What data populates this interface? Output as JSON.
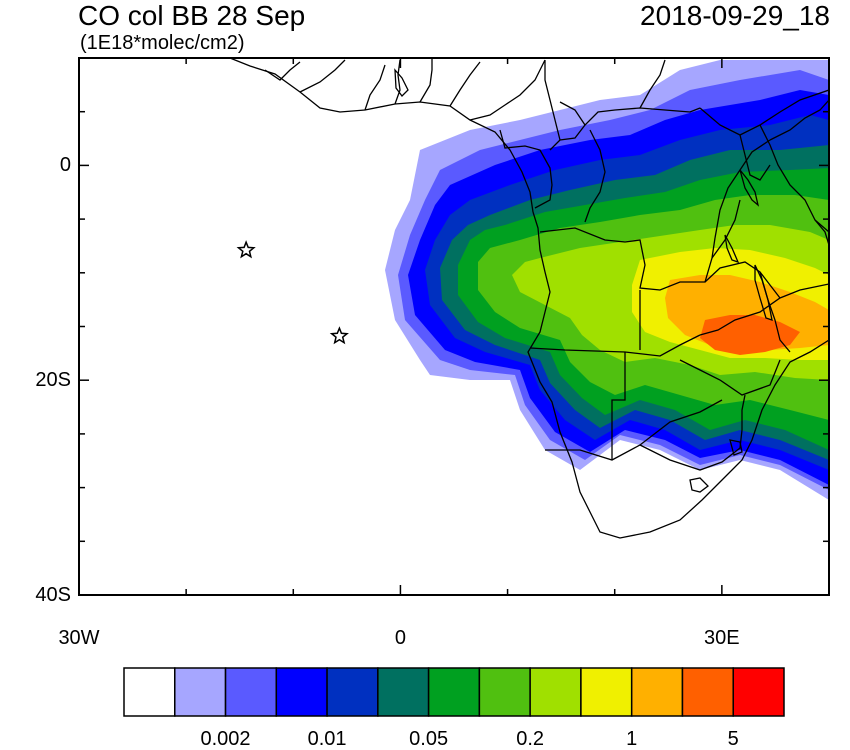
{
  "title": {
    "left": "CO col BB 28 Sep",
    "units": "(1E18*molec/cm2)",
    "right": "2018-09-29_18"
  },
  "axes": {
    "y_ticks": [
      {
        "label": "0",
        "lat": 0
      },
      {
        "label": "20S",
        "lat": -20
      },
      {
        "label": "40S",
        "lat": -40
      }
    ],
    "x_ticks": [
      {
        "label": "30W",
        "lon": -30
      },
      {
        "label": "0",
        "lon": 0
      },
      {
        "label": "30E",
        "lon": 30
      }
    ],
    "lon_range": [
      -30,
      40
    ],
    "lat_range": [
      -40,
      10
    ]
  },
  "markers": [
    {
      "type": "star",
      "lon": -14.4,
      "lat": -7.9
    },
    {
      "type": "star",
      "lon": -5.7,
      "lat": -15.9
    }
  ],
  "colorbar": {
    "colors": [
      "#ffffff",
      "#a6a6ff",
      "#5a5aff",
      "#0000ff",
      "#0030c0",
      "#007060",
      "#00a020",
      "#50c010",
      "#a0e000",
      "#f0f000",
      "#ffb000",
      "#ff6000",
      "#ff0000"
    ],
    "labels": [
      {
        "text": "0.002",
        "boundary": 2
      },
      {
        "text": "0.01",
        "boundary": 4
      },
      {
        "text": "0.05",
        "boundary": 6
      },
      {
        "text": "0.2",
        "boundary": 8
      },
      {
        "text": "1",
        "boundary": 10
      },
      {
        "text": "5",
        "boundary": 12
      }
    ]
  }
}
